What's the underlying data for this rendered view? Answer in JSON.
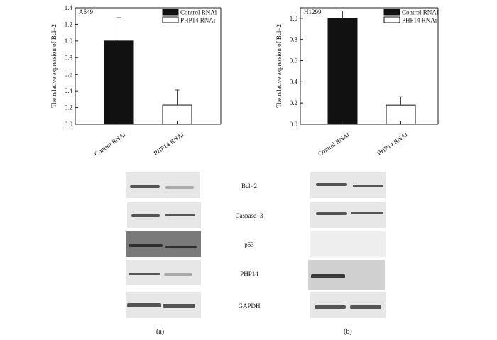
{
  "chart_data": [
    {
      "type": "bar",
      "panel_label": "A549",
      "categories": [
        "Control RNAi",
        "PHP14 RNAi"
      ],
      "values": [
        1.0,
        0.23
      ],
      "errors": [
        0.28,
        0.18
      ],
      "ylabel": "The relative expression of Bcl−2",
      "xlabel": "",
      "ylim": [
        0,
        1.4
      ],
      "yticks": [
        "0.0",
        "0.2",
        "0.4",
        "0.6",
        "0.8",
        "1.0",
        "1.2",
        "1.4"
      ],
      "legend": [
        "Control RNAi",
        "PHP14 RNAi"
      ],
      "legend_position": "top-right",
      "colors": [
        "#111111",
        "#ffffff"
      ]
    },
    {
      "type": "bar",
      "panel_label": "H1299",
      "categories": [
        "Control RNAi",
        "PHP14 RNAi"
      ],
      "values": [
        1.0,
        0.18
      ],
      "errors": [
        0.07,
        0.08
      ],
      "ylabel": "The relative expression of Bcl−2",
      "xlabel": "",
      "ylim": [
        0,
        1.1
      ],
      "yticks": [
        "0.0",
        "0.2",
        "0.4",
        "0.6",
        "0.8",
        "1.0"
      ],
      "legend": [
        "Control RNAi",
        "PHP14 RNAi"
      ],
      "legend_position": "top-right",
      "colors": [
        "#111111",
        "#ffffff"
      ]
    }
  ],
  "blots": {
    "proteins": [
      "Bcl−2",
      "Caspase−3",
      "p53",
      "PHP14",
      "GAPDH"
    ]
  },
  "panels": {
    "a": "(a)",
    "b": "(b)"
  }
}
